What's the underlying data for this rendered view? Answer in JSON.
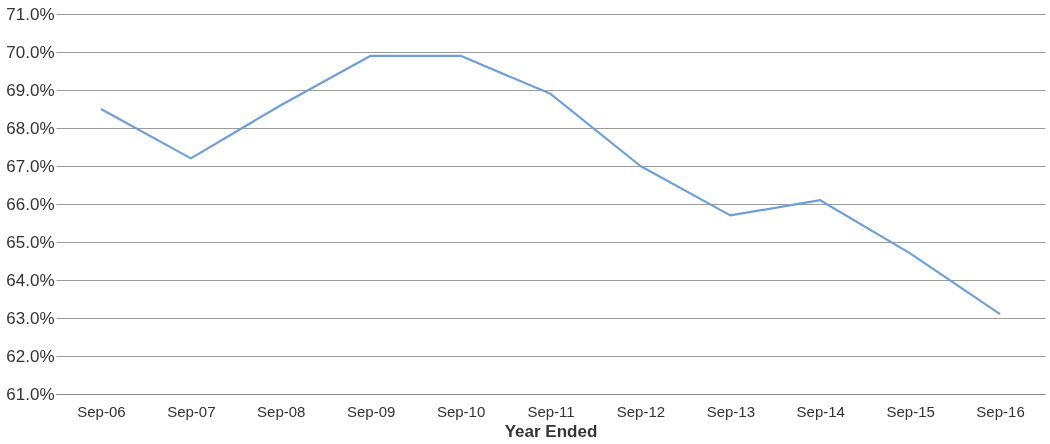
{
  "chart_data": {
    "type": "line",
    "xlabel": "Year Ended",
    "categories": [
      "Sep-06",
      "Sep-07",
      "Sep-08",
      "Sep-09",
      "Sep-10",
      "Sep-11",
      "Sep-12",
      "Sep-13",
      "Sep-14",
      "Sep-15",
      "Sep-16"
    ],
    "series": [
      {
        "color": "#6f9fd4",
        "values": [
          68.5,
          67.2,
          68.6,
          69.9,
          69.9,
          68.9,
          67.0,
          65.7,
          66.1,
          64.7,
          63.1
        ]
      }
    ],
    "ylim": [
      61,
      71
    ],
    "yticks": [
      {
        "value": 61,
        "label": "61.0%"
      },
      {
        "value": 62,
        "label": "62.0%"
      },
      {
        "value": 63,
        "label": "63.0%"
      },
      {
        "value": 64,
        "label": "64.0%"
      },
      {
        "value": 65,
        "label": "65.0%"
      },
      {
        "value": 66,
        "label": "66.0%"
      },
      {
        "value": 67,
        "label": "67.0%"
      },
      {
        "value": 68,
        "label": "68.0%"
      },
      {
        "value": 69,
        "label": "69.0%"
      },
      {
        "value": 70,
        "label": "70.0%"
      },
      {
        "value": 71,
        "label": "71.0%"
      }
    ],
    "grid": "y",
    "marker": "none",
    "line_style": "solid"
  }
}
